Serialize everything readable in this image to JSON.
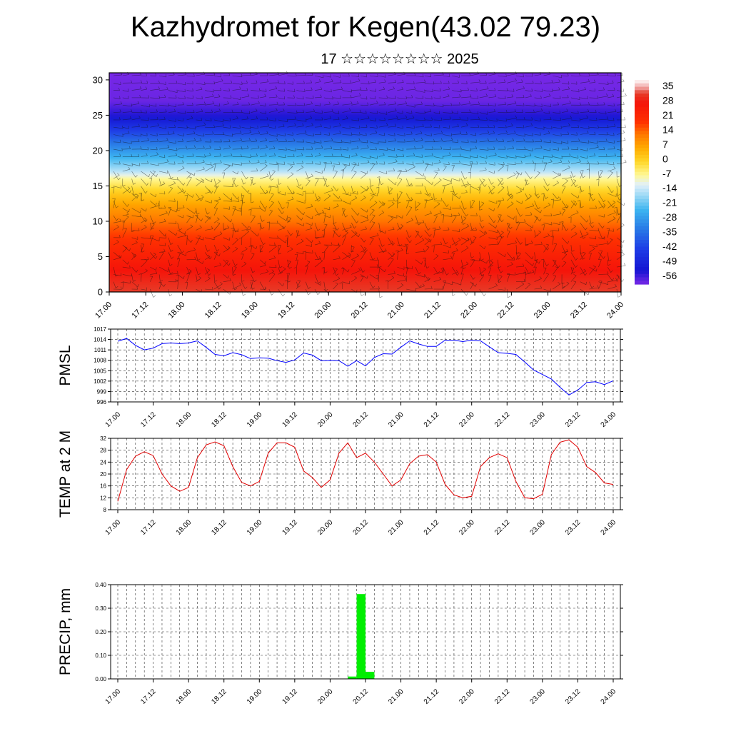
{
  "title": "Kazhydromet for Kegen(43.02 79.23)",
  "subtitle": "17 ☆☆☆☆☆☆☆☆ 2025",
  "chart_data": [
    {
      "type": "heatmap",
      "x_tick_labels": [
        "17.00",
        "17.12",
        "18.00",
        "18.12",
        "19.00",
        "19.12",
        "20.00",
        "20.12",
        "21.00",
        "21.12",
        "22.00",
        "22.12",
        "23.00",
        "23.12",
        "24.00"
      ],
      "yticks": [
        0,
        5,
        10,
        15,
        20,
        25,
        30
      ],
      "ylim": [
        0,
        31
      ],
      "colorbar_labels": [
        "35",
        "28",
        "21",
        "14",
        "7",
        "0",
        "-7",
        "-14",
        "-21",
        "-28",
        "-35",
        "-42",
        "-49",
        "-56"
      ],
      "colorbar_range": [
        -63,
        42
      ],
      "level_temperature_profile": [
        {
          "level": 0,
          "value": 35
        },
        {
          "level": 3,
          "value": 30
        },
        {
          "level": 6,
          "value": 24
        },
        {
          "level": 9,
          "value": 17
        },
        {
          "level": 12,
          "value": 9
        },
        {
          "level": 14,
          "value": 2
        },
        {
          "level": 16,
          "value": -7
        },
        {
          "level": 17,
          "value": -15
        },
        {
          "level": 19,
          "value": -25
        },
        {
          "level": 21,
          "value": -35
        },
        {
          "level": 23,
          "value": -46
        },
        {
          "level": 25,
          "value": -57
        },
        {
          "level": 27,
          "value": -62
        },
        {
          "level": 31,
          "value": -63
        }
      ],
      "wind_barbs": "overlay"
    },
    {
      "type": "line",
      "ylabel": "PMSL",
      "color": "#0000ff",
      "yticks": [
        996,
        999,
        1002,
        1005,
        1008,
        1011,
        1014,
        1017
      ],
      "ylim": [
        996,
        1017
      ],
      "x_tick_labels": [
        "17.00",
        "17.12",
        "18.00",
        "18.12",
        "19.00",
        "19.12",
        "20.00",
        "20.12",
        "21.00",
        "21.12",
        "22.00",
        "22.12",
        "23.00",
        "23.12",
        "24.00"
      ],
      "x_hours": [
        0,
        3,
        6,
        9,
        12,
        15,
        18,
        21,
        24,
        27,
        30,
        33,
        36,
        39,
        42,
        45,
        48,
        51,
        54,
        57,
        60,
        63,
        66,
        69,
        72,
        75,
        78,
        81,
        84,
        87,
        90,
        93,
        96,
        99,
        102,
        105,
        108,
        111,
        114,
        117,
        120,
        123,
        126,
        129,
        132,
        135,
        138,
        141,
        144,
        147,
        150,
        153,
        156,
        159,
        162,
        165,
        168
      ],
      "values": [
        1013.5,
        1014.3,
        1012.3,
        1011.0,
        1011.5,
        1012.8,
        1013.0,
        1012.8,
        1013.0,
        1013.6,
        1011.7,
        1009.7,
        1009.3,
        1010.2,
        1009.6,
        1008.5,
        1008.7,
        1008.6,
        1007.9,
        1007.4,
        1008.1,
        1010.1,
        1009.5,
        1007.9,
        1008.0,
        1007.9,
        1006.3,
        1007.9,
        1006.4,
        1008.8,
        1009.9,
        1009.8,
        1011.8,
        1013.6,
        1012.7,
        1012.0,
        1012.0,
        1013.8,
        1013.8,
        1013.4,
        1013.8,
        1013.6,
        1011.9,
        1010.2,
        1010.0,
        1009.7,
        1007.5,
        1005.2,
        1003.9,
        1002.6,
        1000.2,
        998.0,
        999.4,
        1001.6,
        1001.8,
        1001.0,
        1002.1
      ]
    },
    {
      "type": "line",
      "ylabel": "TEMP at 2 M",
      "color": "#e00000",
      "yticks": [
        8,
        12,
        16,
        20,
        24,
        28,
        32
      ],
      "ylim": [
        8,
        32
      ],
      "x_tick_labels": [
        "17.00",
        "17.12",
        "18.00",
        "18.12",
        "19.00",
        "19.12",
        "20.00",
        "20.12",
        "21.00",
        "21.12",
        "22.00",
        "22.12",
        "23.00",
        "23.12",
        "24.00"
      ],
      "x_hours": [
        0,
        3,
        6,
        9,
        12,
        15,
        18,
        21,
        24,
        27,
        30,
        33,
        36,
        39,
        42,
        45,
        48,
        51,
        54,
        57,
        60,
        63,
        66,
        69,
        72,
        75,
        78,
        81,
        84,
        87,
        90,
        93,
        96,
        99,
        102,
        105,
        108,
        111,
        114,
        117,
        120,
        123,
        126,
        129,
        132,
        135,
        138,
        141,
        144,
        147,
        150,
        153,
        156,
        159,
        162,
        165,
        168
      ],
      "values": [
        10.8,
        21.5,
        26.0,
        27.5,
        26.2,
        20.0,
        16.0,
        14.2,
        15.5,
        25.5,
        29.8,
        30.8,
        29.5,
        22.5,
        17.2,
        16.0,
        17.5,
        27.0,
        30.5,
        30.5,
        29.0,
        21.0,
        18.8,
        15.5,
        18.0,
        27.0,
        30.5,
        25.5,
        27.0,
        24.0,
        20.0,
        16.0,
        18.0,
        23.5,
        26.0,
        26.5,
        24.0,
        16.5,
        13.0,
        12.0,
        12.5,
        22.5,
        25.5,
        26.8,
        25.5,
        17.5,
        12.0,
        11.7,
        13.2,
        26.5,
        30.7,
        31.5,
        29.0,
        22.5,
        20.5,
        17.0,
        16.5
      ]
    },
    {
      "type": "bar",
      "ylabel": "PRECIP, mm",
      "color": "#00ee00",
      "yticks": [
        "0.00",
        "0.10",
        "0.20",
        "0.30",
        "0.40"
      ],
      "ylim": [
        0,
        0.4
      ],
      "x_tick_labels": [
        "17.00",
        "17.12",
        "18.00",
        "18.12",
        "19.00",
        "19.12",
        "20.00",
        "20.12",
        "21.00",
        "21.12",
        "22.00",
        "22.12",
        "23.00",
        "23.12",
        "24.00"
      ],
      "bars": [
        {
          "x_start": 78,
          "x_end": 81,
          "value": 0.01
        },
        {
          "x_start": 81,
          "x_end": 84,
          "value": 0.36
        },
        {
          "x_start": 84,
          "x_end": 87,
          "value": 0.03
        }
      ]
    }
  ]
}
